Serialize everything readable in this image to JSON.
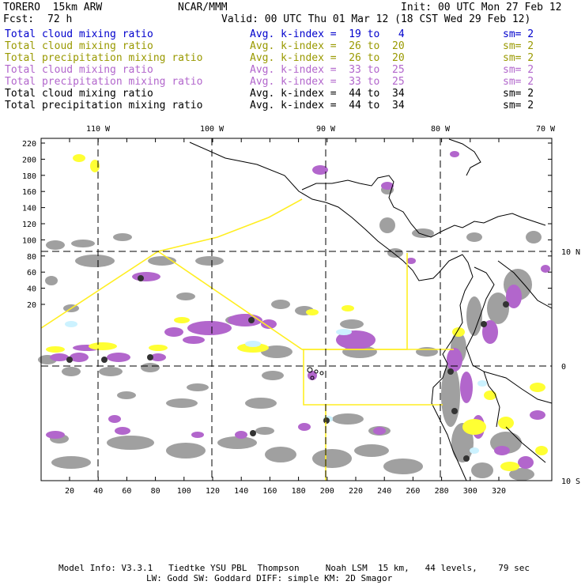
{
  "header": {
    "model": "TORERO  15km ARW",
    "org": "NCAR/MMM",
    "init": "Init: 00 UTC Mon 27 Feb 12",
    "fcst_label": "Fcst:",
    "fcst_value": "72 h",
    "valid": "Valid: 00 UTC Thu 01 Mar 12 (18 CST Wed 29 Feb 12)"
  },
  "legend": [
    {
      "field": "Total cloud mixing ratio",
      "kindex": "Avg. k-index =  19 to   4",
      "sm": "sm= 2",
      "color": "#0000cc"
    },
    {
      "field": "Total cloud mixing ratio",
      "kindex": "Avg. k-index =  26 to  20",
      "sm": "sm= 2",
      "color": "#999900"
    },
    {
      "field": "Total precipitation mixing ratio",
      "kindex": "Avg. k-index =  26 to  20",
      "sm": "sm= 2",
      "color": "#999900"
    },
    {
      "field": "Total cloud mixing ratio",
      "kindex": "Avg. k-index =  33 to  25",
      "sm": "sm= 2",
      "color": "#b266cc"
    },
    {
      "field": "Total precipitation mixing ratio",
      "kindex": "Avg. k-index =  33 to  25",
      "sm": "sm= 2",
      "color": "#b266cc"
    },
    {
      "field": "Total cloud mixing ratio",
      "kindex": "Avg. k-index =  44 to  34",
      "sm": "sm= 2",
      "color": "#000000"
    },
    {
      "field": "Total precipitation mixing ratio",
      "kindex": "Avg. k-index =  44 to  34",
      "sm": "sm= 2",
      "color": "#000000"
    }
  ],
  "map": {
    "lon_labels": [
      "110 W",
      "100 W",
      "90 W",
      "80 W",
      "70 W"
    ],
    "lat_labels": [
      "10 N",
      "0",
      "10 S"
    ],
    "y_ticks": [
      "220",
      "200",
      "180",
      "160",
      "140",
      "120",
      "100",
      "80",
      "60",
      "40",
      "20"
    ],
    "x_ticks": [
      "20",
      "40",
      "60",
      "80",
      "100",
      "120",
      "140",
      "160",
      "180",
      "200",
      "220",
      "240",
      "260",
      "280",
      "300",
      "320"
    ],
    "colors": {
      "gray": "#a0a0a0",
      "purple": "#b266cc",
      "yellow": "#ffff33",
      "cyan": "#ccf2ff",
      "domain": "#ffee22"
    }
  },
  "footer": {
    "line1": "Model Info: V3.3.1   Tiedtke YSU PBL  Thompson     Noah LSM  15 km,   44 levels,    79 sec",
    "line2": "LW: Godd SW: Goddard DIFF: simple KM: 2D Smagor"
  }
}
